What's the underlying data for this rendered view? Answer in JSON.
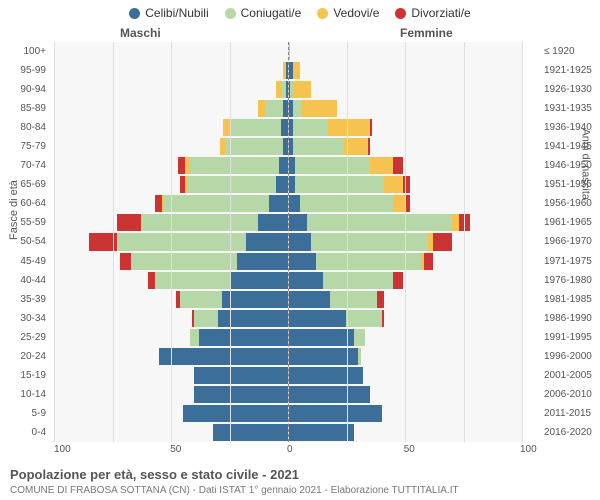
{
  "legend": [
    {
      "label": "Celibi/Nubili",
      "color": "#3b6e99"
    },
    {
      "label": "Coniugati/e",
      "color": "#b6d7a8"
    },
    {
      "label": "Vedovi/e",
      "color": "#f6c350"
    },
    {
      "label": "Divorziati/e",
      "color": "#cc3333"
    }
  ],
  "headers": {
    "left": "Maschi",
    "right": "Femmine"
  },
  "axis_titles": {
    "left": "Fasce di età",
    "right": "Anni di nascita"
  },
  "age_labels": [
    "100+",
    "95-99",
    "90-94",
    "85-89",
    "80-84",
    "75-79",
    "70-74",
    "65-69",
    "60-64",
    "55-59",
    "50-54",
    "45-49",
    "40-44",
    "35-39",
    "30-34",
    "25-29",
    "20-24",
    "15-19",
    "10-14",
    "5-9",
    "0-4"
  ],
  "birth_labels": [
    "≤ 1920",
    "1921-1925",
    "1926-1930",
    "1931-1935",
    "1936-1940",
    "1941-1945",
    "1946-1950",
    "1951-1955",
    "1956-1960",
    "1961-1965",
    "1966-1970",
    "1971-1975",
    "1976-1980",
    "1981-1985",
    "1986-1990",
    "1991-1995",
    "1996-2000",
    "2001-2005",
    "2006-2010",
    "2011-2015",
    "2016-2020"
  ],
  "x_ticks": [
    "100",
    "50",
    "0",
    "50",
    "100"
  ],
  "x_max": 100,
  "grid_positions_pct": [
    0,
    25,
    50,
    75,
    100
  ],
  "caption": "Popolazione per età, sesso e stato civile - 2021",
  "subcaption": "COMUNE DI FRABOSA SOTTANA (CN) - Dati ISTAT 1° gennaio 2021 - Elaborazione TUTTITALIA.IT",
  "background_color": "#f7f7f7",
  "grid_color": "#e0e0e0",
  "males": [
    {
      "cel": 0,
      "con": 0,
      "ved": 0,
      "div": 0
    },
    {
      "cel": 1,
      "con": 0,
      "ved": 1,
      "div": 0
    },
    {
      "cel": 1,
      "con": 2,
      "ved": 2,
      "div": 0
    },
    {
      "cel": 2,
      "con": 8,
      "ved": 3,
      "div": 0
    },
    {
      "cel": 3,
      "con": 22,
      "ved": 3,
      "div": 0
    },
    {
      "cel": 2,
      "con": 25,
      "ved": 2,
      "div": 0
    },
    {
      "cel": 4,
      "con": 38,
      "ved": 2,
      "div": 3
    },
    {
      "cel": 5,
      "con": 38,
      "ved": 1,
      "div": 2
    },
    {
      "cel": 8,
      "con": 45,
      "ved": 1,
      "div": 3
    },
    {
      "cel": 13,
      "con": 50,
      "ved": 0,
      "div": 10
    },
    {
      "cel": 18,
      "con": 55,
      "ved": 0,
      "div": 12
    },
    {
      "cel": 22,
      "con": 45,
      "ved": 0,
      "div": 5
    },
    {
      "cel": 25,
      "con": 32,
      "ved": 0,
      "div": 3
    },
    {
      "cel": 28,
      "con": 18,
      "ved": 0,
      "div": 2
    },
    {
      "cel": 30,
      "con": 10,
      "ved": 0,
      "div": 1
    },
    {
      "cel": 38,
      "con": 4,
      "ved": 0,
      "div": 0
    },
    {
      "cel": 55,
      "con": 0,
      "ved": 0,
      "div": 0
    },
    {
      "cel": 40,
      "con": 0,
      "ved": 0,
      "div": 0
    },
    {
      "cel": 40,
      "con": 0,
      "ved": 0,
      "div": 0
    },
    {
      "cel": 45,
      "con": 0,
      "ved": 0,
      "div": 0
    },
    {
      "cel": 32,
      "con": 0,
      "ved": 0,
      "div": 0
    }
  ],
  "females": [
    {
      "cel": 0,
      "con": 0,
      "ved": 1,
      "div": 0
    },
    {
      "cel": 2,
      "con": 0,
      "ved": 3,
      "div": 0
    },
    {
      "cel": 1,
      "con": 1,
      "ved": 8,
      "div": 0
    },
    {
      "cel": 2,
      "con": 4,
      "ved": 15,
      "div": 0
    },
    {
      "cel": 2,
      "con": 15,
      "ved": 18,
      "div": 1
    },
    {
      "cel": 2,
      "con": 22,
      "ved": 10,
      "div": 1
    },
    {
      "cel": 3,
      "con": 32,
      "ved": 10,
      "div": 4
    },
    {
      "cel": 3,
      "con": 38,
      "ved": 8,
      "div": 3
    },
    {
      "cel": 5,
      "con": 40,
      "ved": 5,
      "div": 2
    },
    {
      "cel": 8,
      "con": 62,
      "ved": 3,
      "div": 5
    },
    {
      "cel": 10,
      "con": 50,
      "ved": 2,
      "div": 8
    },
    {
      "cel": 12,
      "con": 45,
      "ved": 1,
      "div": 4
    },
    {
      "cel": 15,
      "con": 30,
      "ved": 0,
      "div": 4
    },
    {
      "cel": 18,
      "con": 20,
      "ved": 0,
      "div": 3
    },
    {
      "cel": 25,
      "con": 15,
      "ved": 0,
      "div": 1
    },
    {
      "cel": 28,
      "con": 5,
      "ved": 0,
      "div": 0
    },
    {
      "cel": 30,
      "con": 1,
      "ved": 0,
      "div": 0
    },
    {
      "cel": 32,
      "con": 0,
      "ved": 0,
      "div": 0
    },
    {
      "cel": 35,
      "con": 0,
      "ved": 0,
      "div": 0
    },
    {
      "cel": 40,
      "con": 0,
      "ved": 0,
      "div": 0
    },
    {
      "cel": 28,
      "con": 0,
      "ved": 0,
      "div": 0
    }
  ]
}
